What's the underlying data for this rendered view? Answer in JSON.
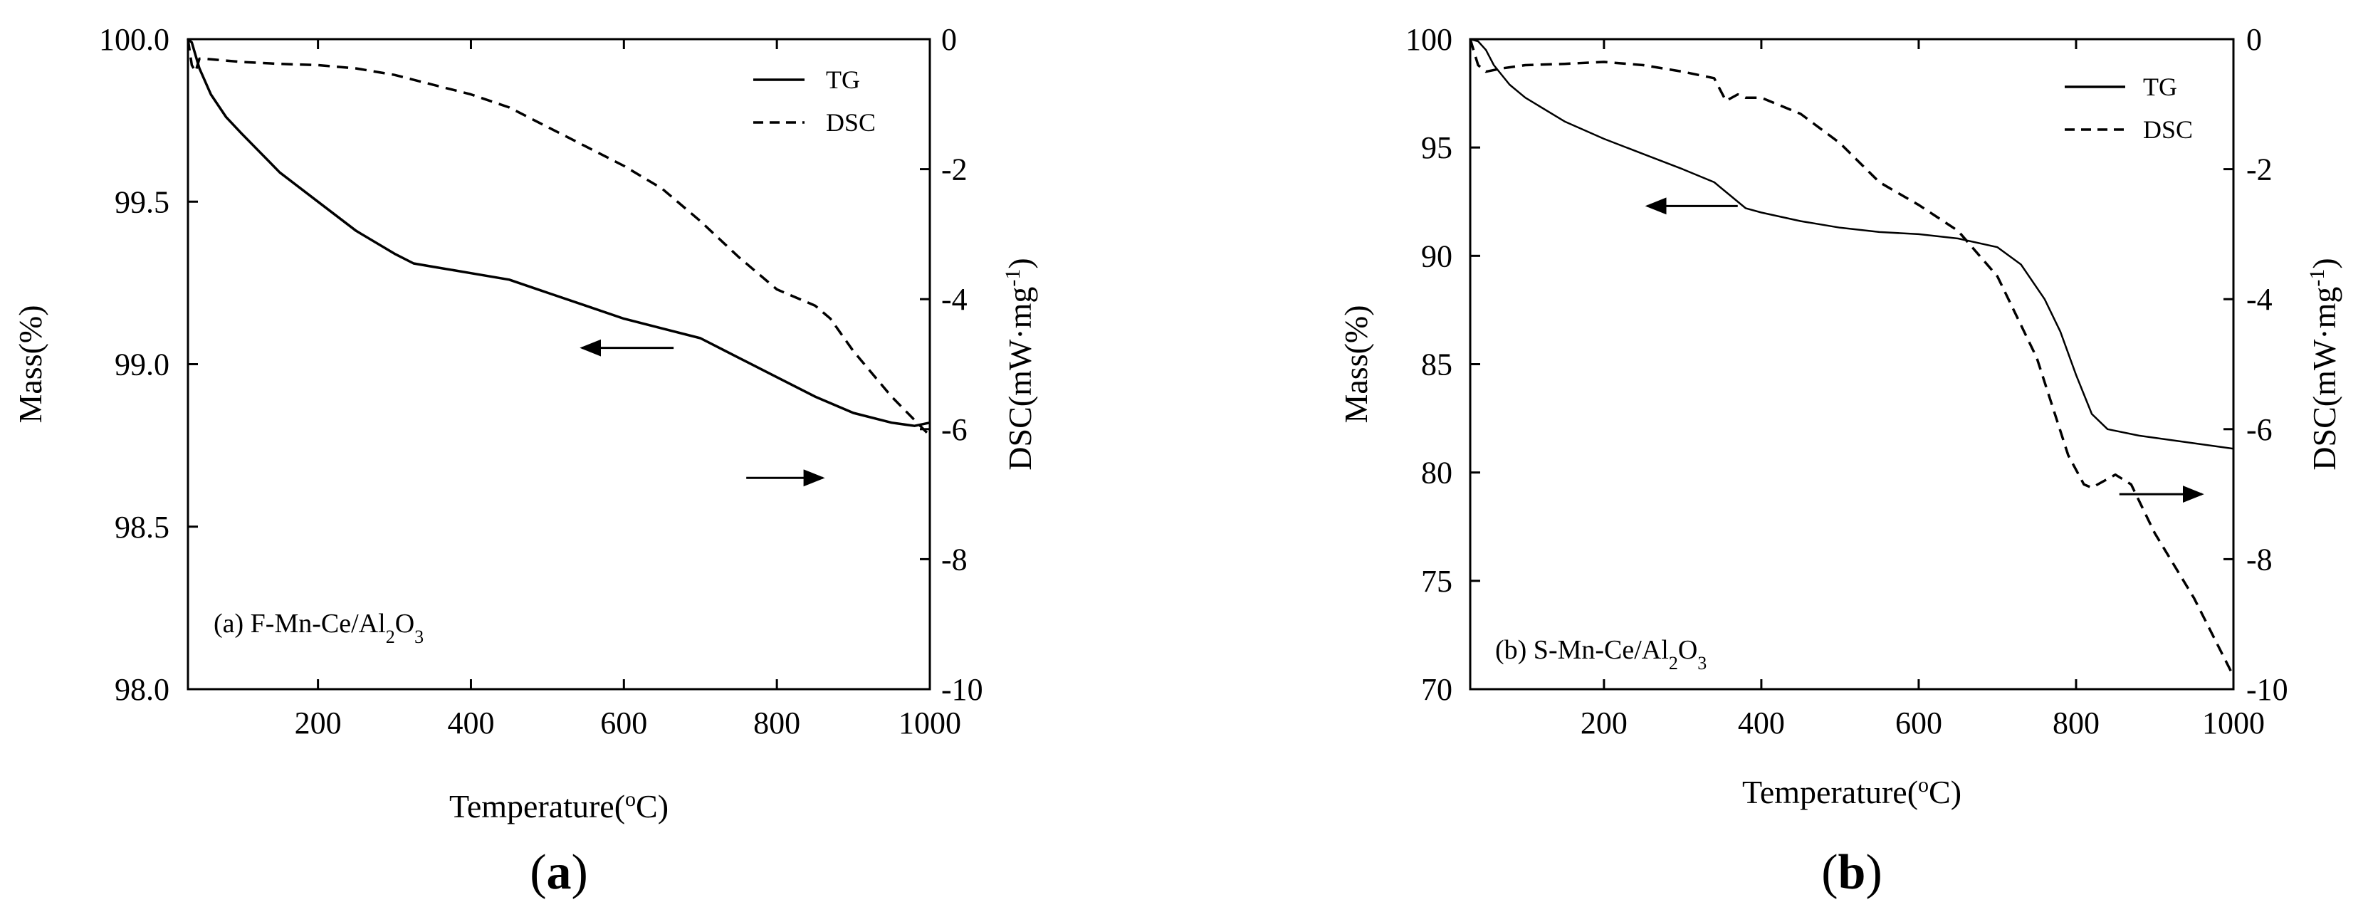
{
  "chart_data": [
    {
      "panel": "a",
      "type": "line",
      "caption": "(a)",
      "annotation": {
        "prefix": "(a) F-Mn-Ce/Al",
        "sub1": "2",
        "mid": "O",
        "sub2": "3"
      },
      "xlabel": {
        "text": "Temperature(",
        "sup": "o",
        "tail": "C)"
      },
      "ylabel_left": "Mass(%)",
      "ylabel_right": {
        "text": "DSC(mW·mg",
        "sup": "-1",
        "tail": ")"
      },
      "xlim": [
        30,
        1000
      ],
      "ylim_left": [
        98.0,
        100.0
      ],
      "ylim_right": [
        -10,
        0
      ],
      "x_ticks": [
        200,
        400,
        600,
        800,
        1000
      ],
      "x_tick_labels": [
        "200",
        "400",
        "600",
        "800",
        "1000"
      ],
      "y_left_ticks": [
        98.0,
        98.5,
        99.0,
        99.5,
        100.0
      ],
      "y_left_tick_labels": [
        "98.0",
        "98.5",
        "99.0",
        "99.5",
        "100.0"
      ],
      "y_right_ticks": [
        -10,
        -8,
        -6,
        -4,
        -2,
        0
      ],
      "y_right_tick_labels": [
        "-10",
        "-8",
        "-6",
        "-4",
        "-2",
        "0"
      ],
      "legend": {
        "position": "top-right",
        "entries": [
          "TG",
          "DSC"
        ]
      },
      "series": [
        {
          "name": "TG",
          "axis": "left",
          "style": "solid",
          "x": [
            30,
            35,
            45,
            60,
            80,
            100,
            125,
            150,
            200,
            250,
            300,
            325,
            350,
            400,
            450,
            500,
            550,
            600,
            650,
            700,
            750,
            800,
            850,
            900,
            950,
            980,
            1000
          ],
          "y": [
            100.0,
            99.99,
            99.91,
            99.83,
            99.76,
            99.71,
            99.65,
            99.59,
            99.5,
            99.41,
            99.34,
            99.31,
            99.3,
            99.28,
            99.26,
            99.22,
            99.18,
            99.14,
            99.11,
            99.08,
            99.02,
            98.96,
            98.9,
            98.85,
            98.82,
            98.81,
            98.82
          ]
        },
        {
          "name": "DSC",
          "axis": "right",
          "style": "dashed",
          "x": [
            30,
            35,
            40,
            45,
            50,
            100,
            150,
            200,
            250,
            300,
            350,
            400,
            450,
            500,
            550,
            600,
            650,
            700,
            750,
            800,
            850,
            870,
            900,
            950,
            1000
          ],
          "y": [
            0,
            -0.4,
            -0.5,
            -0.3,
            -0.3,
            -0.35,
            -0.38,
            -0.4,
            -0.45,
            -0.55,
            -0.7,
            -0.85,
            -1.05,
            -1.35,
            -1.65,
            -1.95,
            -2.3,
            -2.8,
            -3.35,
            -3.85,
            -4.1,
            -4.3,
            -4.8,
            -5.5,
            -6.1
          ]
        }
      ],
      "arrows": [
        {
          "target": "TG",
          "direction": "left",
          "x_from": 665,
          "x_to": 545,
          "y": 99.05
        },
        {
          "target": "DSC",
          "direction": "right",
          "x_from": 760,
          "x_to": 860,
          "y": 98.65
        }
      ]
    },
    {
      "panel": "b",
      "type": "line",
      "caption": "(b)",
      "annotation": {
        "prefix": "(b) S-Mn-Ce/Al",
        "sub1": "2",
        "mid": "O",
        "sub2": "3"
      },
      "xlabel": {
        "text": "Temperature(",
        "sup": "o",
        "tail": "C)"
      },
      "ylabel_left": "Mass(%)",
      "ylabel_right": {
        "text": "DSC(mW·mg",
        "sup": "-1",
        "tail": ")"
      },
      "xlim": [
        30,
        1000
      ],
      "ylim_left": [
        70,
        100
      ],
      "ylim_right": [
        -10,
        0
      ],
      "x_ticks": [
        200,
        400,
        600,
        800,
        1000
      ],
      "x_tick_labels": [
        "200",
        "400",
        "600",
        "800",
        "1000"
      ],
      "y_left_ticks": [
        70,
        75,
        80,
        85,
        90,
        95,
        100
      ],
      "y_left_tick_labels": [
        "70",
        "75",
        "80",
        "85",
        "90",
        "95",
        "100"
      ],
      "y_right_ticks": [
        -10,
        -8,
        -6,
        -4,
        -2,
        0
      ],
      "y_right_tick_labels": [
        "-10",
        "-8",
        "-6",
        "-4",
        "-2",
        "0"
      ],
      "legend": {
        "position": "top-right",
        "entries": [
          "TG",
          "DSC"
        ]
      },
      "series": [
        {
          "name": "TG",
          "axis": "left",
          "style": "solid",
          "x": [
            30,
            40,
            50,
            60,
            80,
            100,
            150,
            200,
            250,
            300,
            340,
            360,
            380,
            400,
            450,
            500,
            550,
            600,
            650,
            700,
            730,
            760,
            780,
            800,
            820,
            840,
            880,
            920,
            960,
            1000
          ],
          "y": [
            100.0,
            99.9,
            99.5,
            98.8,
            97.9,
            97.3,
            96.2,
            95.4,
            94.7,
            94.0,
            93.4,
            92.8,
            92.2,
            92.0,
            91.6,
            91.3,
            91.1,
            91.0,
            90.8,
            90.4,
            89.6,
            88.0,
            86.5,
            84.5,
            82.7,
            82.0,
            81.7,
            81.5,
            81.3,
            81.1
          ]
        },
        {
          "name": "DSC",
          "axis": "right",
          "style": "dashed",
          "x": [
            30,
            40,
            50,
            70,
            100,
            150,
            200,
            250,
            300,
            340,
            355,
            370,
            380,
            400,
            450,
            500,
            550,
            600,
            650,
            700,
            750,
            790,
            810,
            820,
            850,
            870,
            900,
            950,
            1000
          ],
          "y": [
            0,
            -0.4,
            -0.5,
            -0.45,
            -0.4,
            -0.38,
            -0.35,
            -0.4,
            -0.5,
            -0.6,
            -0.95,
            -0.85,
            -0.9,
            -0.9,
            -1.15,
            -1.6,
            -2.2,
            -2.55,
            -2.95,
            -3.65,
            -4.9,
            -6.4,
            -6.85,
            -6.9,
            -6.7,
            -6.85,
            -7.6,
            -8.6,
            -9.8
          ]
        }
      ],
      "arrows": [
        {
          "target": "TG",
          "direction": "left",
          "x_from": 370,
          "x_to": 255,
          "y": 92.3
        },
        {
          "target": "DSC",
          "direction": "right",
          "x_from": 855,
          "x_to": 960,
          "y": 79.0
        }
      ]
    }
  ]
}
